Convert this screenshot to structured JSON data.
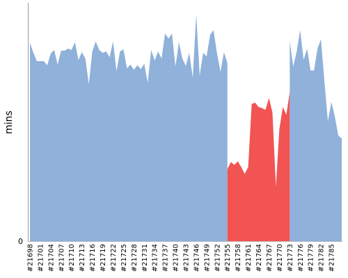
{
  "chart_data": {
    "type": "area",
    "ylabel": "mins",
    "xlabel": "",
    "title": "",
    "ylim": [
      0,
      100
    ],
    "y_ticks_shown": [
      "0"
    ],
    "grid": false,
    "legend": "none",
    "x_labels": [
      "#21698",
      "#21701",
      "#21704",
      "#21707",
      "#21710",
      "#21713",
      "#21716",
      "#21719",
      "#21722",
      "#21725",
      "#21728",
      "#21731",
      "#21734",
      "#21737",
      "#21740",
      "#21743",
      "#21746",
      "#21749",
      "#21752",
      "#21755",
      "#21758",
      "#21761",
      "#21764",
      "#21767",
      "#21770",
      "#21773",
      "#21776",
      "#21779",
      "#21782",
      "#21785"
    ],
    "x_label_step": 3,
    "x_start": 21698,
    "x_end": 21788,
    "colors": {
      "normal": "#8fb1da",
      "highlight": "#f25454",
      "axis": "#999999"
    },
    "series": [
      {
        "x": [
          21698,
          21699,
          21700,
          21701,
          21702,
          21703,
          21704,
          21705,
          21706,
          21707,
          21708,
          21709,
          21710,
          21711,
          21712,
          21713,
          21714,
          21715,
          21716,
          21717,
          21718,
          21719,
          21720,
          21721,
          21722,
          21723,
          21724,
          21725,
          21726,
          21727,
          21728,
          21729,
          21730,
          21731,
          21732,
          21733,
          21734,
          21735,
          21736,
          21737,
          21738,
          21739,
          21740,
          21741,
          21742,
          21743,
          21744,
          21745,
          21746,
          21747,
          21748,
          21749,
          21750,
          21751,
          21752,
          21753,
          21754,
          21755
        ],
        "values": [
          83.2,
          79.0,
          75.5,
          75.5,
          75.5,
          73.8,
          78.7,
          80.2,
          74.1,
          79.9,
          79.9,
          80.8,
          80.2,
          83.5,
          76.0,
          79.3,
          76.6,
          65.9,
          79.6,
          83.8,
          80.2,
          79.0,
          79.6,
          77.2,
          83.8,
          71.3,
          79.6,
          80.5,
          72.5,
          74.1,
          71.9,
          73.8,
          72.2,
          74.4,
          66.5,
          80.2,
          75.8,
          79.6,
          76.6,
          87.1,
          85.0,
          87.1,
          73.2,
          83.5,
          76.6,
          73.5,
          79.0,
          68.6,
          95.2,
          69.5,
          79.0,
          77.5,
          86.5,
          88.6,
          78.7,
          71.0,
          79.3,
          74.7
        ]
      },
      {
        "x": [
          21755,
          21756,
          21757,
          21758,
          21759,
          21760,
          21761,
          21762,
          21763,
          21764,
          21765,
          21766,
          21767,
          21768,
          21769,
          21770,
          21771,
          21772,
          21773
        ],
        "values": [
          30.2,
          33.2,
          32.0,
          33.5,
          31.1,
          28.2,
          31.1,
          57.5,
          58.1,
          56.3,
          55.8,
          55.1,
          60.1,
          53.9,
          22.9,
          47.0,
          56.3,
          53.0,
          62.6
        ],
        "highlight": true
      },
      {
        "x": [
          21773,
          21774,
          21775,
          21776,
          21777,
          21778,
          21779,
          21780,
          21781,
          21782,
          21783,
          21784,
          21785,
          21786,
          21787,
          21788
        ],
        "values": [
          83.8,
          73.2,
          79.6,
          88.6,
          76.0,
          80.8,
          71.6,
          71.6,
          80.8,
          84.7,
          67.1,
          50.3,
          58.4,
          52.4,
          44.3,
          43.1
        ]
      }
    ]
  }
}
